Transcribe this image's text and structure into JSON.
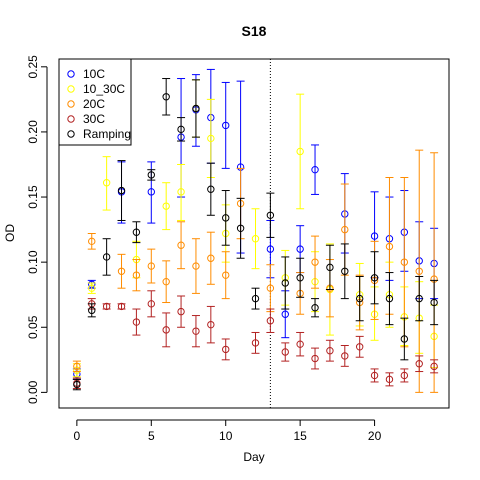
{
  "chart_data": {
    "type": "scatter",
    "title": "S18",
    "xlabel": "Day",
    "ylabel": "OD",
    "xlim": [
      -1.2,
      25
    ],
    "ylim": [
      -0.012,
      0.256
    ],
    "x_ticks": [
      0,
      5,
      10,
      15,
      20
    ],
    "y_ticks": [
      0.0,
      0.05,
      0.1,
      0.15,
      0.2,
      0.25
    ],
    "y_tick_labels": [
      "0.00",
      "0.05",
      "0.10",
      "0.15",
      "0.20",
      "0.25"
    ],
    "grid": false,
    "legend_position": "top-left",
    "vertical_line": {
      "x": 13,
      "style": "dotted"
    },
    "series": [
      {
        "name": "10C",
        "color": "#0000ff",
        "points": [
          {
            "x": 0,
            "y": 0.014,
            "lo": 0.01,
            "hi": 0.018
          },
          {
            "x": 1,
            "y": 0.083,
            "lo": 0.08,
            "hi": 0.086
          },
          {
            "x": 3,
            "y": 0.154,
            "lo": 0.13,
            "hi": 0.177
          },
          {
            "x": 5,
            "y": 0.154,
            "lo": 0.13,
            "hi": 0.177
          },
          {
            "x": 7,
            "y": 0.196,
            "lo": 0.15,
            "hi": 0.241
          },
          {
            "x": 8,
            "y": 0.217,
            "lo": 0.189,
            "hi": 0.244
          },
          {
            "x": 9,
            "y": 0.211,
            "lo": 0.176,
            "hi": 0.248
          },
          {
            "x": 10,
            "y": 0.205,
            "lo": 0.172,
            "hi": 0.238
          },
          {
            "x": 11,
            "y": 0.173,
            "lo": 0.107,
            "hi": 0.239
          },
          {
            "x": 13,
            "y": 0.11,
            "lo": 0.088,
            "hi": 0.132
          },
          {
            "x": 14,
            "y": 0.06,
            "lo": 0.042,
            "hi": 0.078
          },
          {
            "x": 15,
            "y": 0.11,
            "lo": 0.092,
            "hi": 0.128
          },
          {
            "x": 16,
            "y": 0.171,
            "lo": 0.152,
            "hi": 0.19
          },
          {
            "x": 18,
            "y": 0.137,
            "lo": 0.107,
            "hi": 0.168
          },
          {
            "x": 20,
            "y": 0.12,
            "lo": 0.088,
            "hi": 0.154
          },
          {
            "x": 21,
            "y": 0.118,
            "lo": 0.086,
            "hi": 0.15
          },
          {
            "x": 22,
            "y": 0.123,
            "lo": 0.093,
            "hi": 0.155
          },
          {
            "x": 23,
            "y": 0.101,
            "lo": 0.072,
            "hi": 0.131
          },
          {
            "x": 24,
            "y": 0.099,
            "lo": 0.072,
            "hi": 0.126
          }
        ]
      },
      {
        "name": "10_30C",
        "color": "#ffff00",
        "points": [
          {
            "x": 0,
            "y": 0.017,
            "lo": 0.012,
            "hi": 0.022
          },
          {
            "x": 1,
            "y": 0.08,
            "lo": 0.076,
            "hi": 0.084
          },
          {
            "x": 2,
            "y": 0.161,
            "lo": 0.14,
            "hi": 0.181
          },
          {
            "x": 4,
            "y": 0.102,
            "lo": 0.088,
            "hi": 0.116
          },
          {
            "x": 6,
            "y": 0.143,
            "lo": 0.125,
            "hi": 0.161
          },
          {
            "x": 7,
            "y": 0.154,
            "lo": 0.132,
            "hi": 0.175
          },
          {
            "x": 8,
            "y": 0.218,
            "lo": 0.196,
            "hi": 0.24
          },
          {
            "x": 9,
            "y": 0.195,
            "lo": 0.165,
            "hi": 0.225
          },
          {
            "x": 10,
            "y": 0.122,
            "lo": 0.1,
            "hi": 0.144
          },
          {
            "x": 12,
            "y": 0.118,
            "lo": 0.095,
            "hi": 0.141
          },
          {
            "x": 14,
            "y": 0.088,
            "lo": 0.067,
            "hi": 0.109
          },
          {
            "x": 15,
            "y": 0.185,
            "lo": 0.141,
            "hi": 0.229
          },
          {
            "x": 16,
            "y": 0.085,
            "lo": 0.062,
            "hi": 0.108
          },
          {
            "x": 17,
            "y": 0.079,
            "lo": 0.044,
            "hi": 0.114
          },
          {
            "x": 19,
            "y": 0.075,
            "lo": 0.051,
            "hi": 0.099
          },
          {
            "x": 20,
            "y": 0.06,
            "lo": 0.04,
            "hi": 0.081
          },
          {
            "x": 21,
            "y": 0.075,
            "lo": 0.05,
            "hi": 0.1
          },
          {
            "x": 22,
            "y": 0.058,
            "lo": 0.036,
            "hi": 0.081
          },
          {
            "x": 23,
            "y": 0.057,
            "lo": 0.03,
            "hi": 0.085
          },
          {
            "x": 24,
            "y": 0.043,
            "lo": 0.019,
            "hi": 0.067
          }
        ]
      },
      {
        "name": "20C",
        "color": "#ff8c00",
        "points": [
          {
            "x": 0,
            "y": 0.02,
            "lo": 0.016,
            "hi": 0.024
          },
          {
            "x": 1,
            "y": 0.116,
            "lo": 0.11,
            "hi": 0.122
          },
          {
            "x": 3,
            "y": 0.093,
            "lo": 0.08,
            "hi": 0.106
          },
          {
            "x": 4,
            "y": 0.09,
            "lo": 0.078,
            "hi": 0.102
          },
          {
            "x": 5,
            "y": 0.097,
            "lo": 0.084,
            "hi": 0.11
          },
          {
            "x": 6,
            "y": 0.085,
            "lo": 0.069,
            "hi": 0.101
          },
          {
            "x": 7,
            "y": 0.113,
            "lo": 0.095,
            "hi": 0.131
          },
          {
            "x": 8,
            "y": 0.097,
            "lo": 0.076,
            "hi": 0.118
          },
          {
            "x": 9,
            "y": 0.103,
            "lo": 0.083,
            "hi": 0.123
          },
          {
            "x": 10,
            "y": 0.09,
            "lo": 0.072,
            "hi": 0.108
          },
          {
            "x": 11,
            "y": 0.145,
            "lo": 0.118,
            "hi": 0.172
          },
          {
            "x": 13,
            "y": 0.08,
            "lo": 0.062,
            "hi": 0.098
          },
          {
            "x": 15,
            "y": 0.076,
            "lo": 0.06,
            "hi": 0.092
          },
          {
            "x": 16,
            "y": 0.1,
            "lo": 0.08,
            "hi": 0.12
          },
          {
            "x": 17,
            "y": 0.08,
            "lo": 0.058,
            "hi": 0.102
          },
          {
            "x": 18,
            "y": 0.125,
            "lo": 0.09,
            "hi": 0.16
          },
          {
            "x": 19,
            "y": 0.069,
            "lo": 0.048,
            "hi": 0.09
          },
          {
            "x": 20,
            "y": 0.086,
            "lo": 0.056,
            "hi": 0.116
          },
          {
            "x": 21,
            "y": 0.112,
            "lo": 0.06,
            "hi": 0.165
          },
          {
            "x": 22,
            "y": 0.1,
            "lo": 0.035,
            "hi": 0.165
          },
          {
            "x": 23,
            "y": 0.093,
            "lo": 0.0,
            "hi": 0.186
          },
          {
            "x": 24,
            "y": 0.087,
            "lo": 0.0,
            "hi": 0.184
          }
        ]
      },
      {
        "name": "30C",
        "color": "#b22222",
        "points": [
          {
            "x": 0,
            "y": 0.007,
            "lo": 0.003,
            "hi": 0.011
          },
          {
            "x": 1,
            "y": 0.068,
            "lo": 0.064,
            "hi": 0.072
          },
          {
            "x": 2,
            "y": 0.066,
            "lo": 0.064,
            "hi": 0.068
          },
          {
            "x": 3,
            "y": 0.066,
            "lo": 0.064,
            "hi": 0.068
          },
          {
            "x": 4,
            "y": 0.054,
            "lo": 0.044,
            "hi": 0.064
          },
          {
            "x": 5,
            "y": 0.068,
            "lo": 0.058,
            "hi": 0.078
          },
          {
            "x": 6,
            "y": 0.048,
            "lo": 0.035,
            "hi": 0.061
          },
          {
            "x": 7,
            "y": 0.062,
            "lo": 0.05,
            "hi": 0.074
          },
          {
            "x": 8,
            "y": 0.047,
            "lo": 0.035,
            "hi": 0.059
          },
          {
            "x": 9,
            "y": 0.052,
            "lo": 0.038,
            "hi": 0.066
          },
          {
            "x": 10,
            "y": 0.033,
            "lo": 0.025,
            "hi": 0.041
          },
          {
            "x": 12,
            "y": 0.038,
            "lo": 0.03,
            "hi": 0.046
          },
          {
            "x": 13,
            "y": 0.055,
            "lo": 0.046,
            "hi": 0.064
          },
          {
            "x": 14,
            "y": 0.031,
            "lo": 0.024,
            "hi": 0.038
          },
          {
            "x": 15,
            "y": 0.037,
            "lo": 0.028,
            "hi": 0.046
          },
          {
            "x": 16,
            "y": 0.026,
            "lo": 0.018,
            "hi": 0.034
          },
          {
            "x": 17,
            "y": 0.032,
            "lo": 0.024,
            "hi": 0.04
          },
          {
            "x": 18,
            "y": 0.028,
            "lo": 0.02,
            "hi": 0.036
          },
          {
            "x": 19,
            "y": 0.035,
            "lo": 0.027,
            "hi": 0.043
          },
          {
            "x": 20,
            "y": 0.013,
            "lo": 0.008,
            "hi": 0.018
          },
          {
            "x": 21,
            "y": 0.01,
            "lo": 0.005,
            "hi": 0.015
          },
          {
            "x": 22,
            "y": 0.013,
            "lo": 0.008,
            "hi": 0.018
          },
          {
            "x": 23,
            "y": 0.022,
            "lo": 0.016,
            "hi": 0.028
          },
          {
            "x": 24,
            "y": 0.02,
            "lo": 0.015,
            "hi": 0.025
          }
        ]
      },
      {
        "name": "Ramping",
        "color": "#000000",
        "points": [
          {
            "x": 0,
            "y": 0.006,
            "lo": 0.002,
            "hi": 0.01
          },
          {
            "x": 1,
            "y": 0.063,
            "lo": 0.058,
            "hi": 0.068
          },
          {
            "x": 2,
            "y": 0.104,
            "lo": 0.09,
            "hi": 0.118
          },
          {
            "x": 3,
            "y": 0.155,
            "lo": 0.132,
            "hi": 0.178
          },
          {
            "x": 4,
            "y": 0.123,
            "lo": 0.115,
            "hi": 0.131
          },
          {
            "x": 5,
            "y": 0.167,
            "lo": 0.163,
            "hi": 0.171
          },
          {
            "x": 6,
            "y": 0.227,
            "lo": 0.213,
            "hi": 0.241
          },
          {
            "x": 7,
            "y": 0.202,
            "lo": 0.193,
            "hi": 0.211
          },
          {
            "x": 8,
            "y": 0.218,
            "lo": 0.196,
            "hi": 0.24
          },
          {
            "x": 9,
            "y": 0.156,
            "lo": 0.136,
            "hi": 0.176
          },
          {
            "x": 10,
            "y": 0.134,
            "lo": 0.113,
            "hi": 0.155
          },
          {
            "x": 11,
            "y": 0.126,
            "lo": 0.103,
            "hi": 0.149
          },
          {
            "x": 12,
            "y": 0.072,
            "lo": 0.064,
            "hi": 0.08
          },
          {
            "x": 13,
            "y": 0.136,
            "lo": 0.119,
            "hi": 0.153
          },
          {
            "x": 14,
            "y": 0.084,
            "lo": 0.064,
            "hi": 0.104
          },
          {
            "x": 15,
            "y": 0.088,
            "lo": 0.073,
            "hi": 0.103
          },
          {
            "x": 16,
            "y": 0.065,
            "lo": 0.058,
            "hi": 0.072
          },
          {
            "x": 17,
            "y": 0.096,
            "lo": 0.079,
            "hi": 0.113
          },
          {
            "x": 18,
            "y": 0.093,
            "lo": 0.072,
            "hi": 0.114
          },
          {
            "x": 19,
            "y": 0.072,
            "lo": 0.055,
            "hi": 0.089
          },
          {
            "x": 20,
            "y": 0.088,
            "lo": 0.068,
            "hi": 0.108
          },
          {
            "x": 21,
            "y": 0.072,
            "lo": 0.052,
            "hi": 0.092
          },
          {
            "x": 22,
            "y": 0.041,
            "lo": 0.025,
            "hi": 0.057
          },
          {
            "x": 23,
            "y": 0.072,
            "lo": 0.055,
            "hi": 0.089
          },
          {
            "x": 24,
            "y": 0.069,
            "lo": 0.052,
            "hi": 0.086
          }
        ]
      }
    ]
  }
}
